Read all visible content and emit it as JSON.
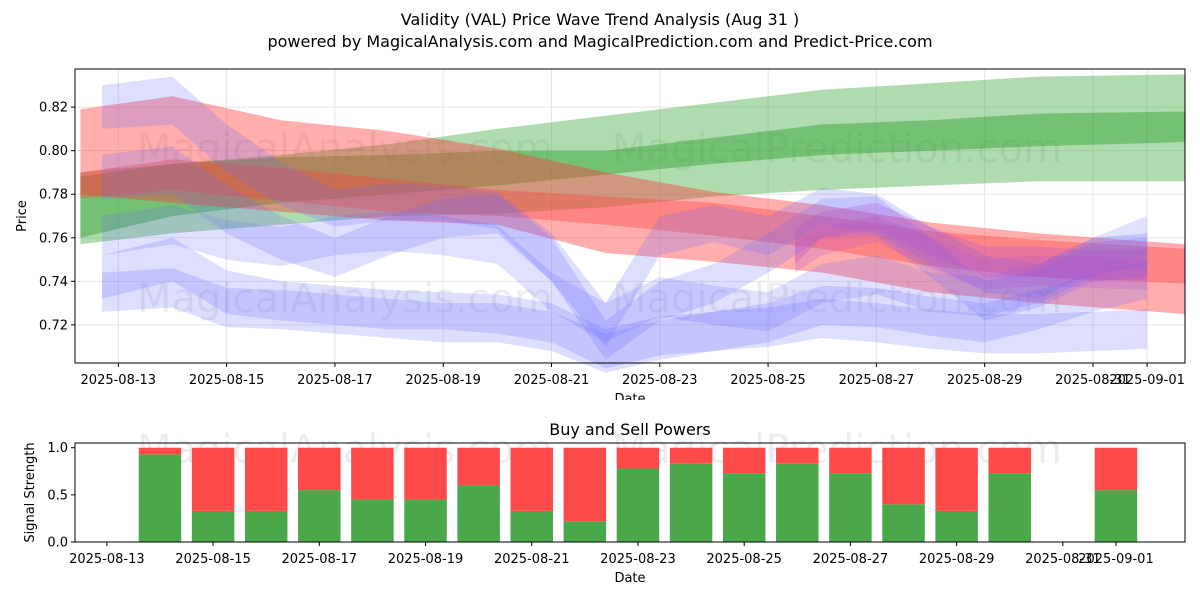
{
  "title_line1": "Validity (VAL) Price Wave Trend Analysis (Aug 31 )",
  "title_line2": "powered by MagicalAnalysis.com and MagicalPrediction.com and Predict-Price.com",
  "watermarks": [
    "MagicalAnalysis.com",
    "MagicalPrediction.com"
  ],
  "colors": {
    "green": "#2ca02c",
    "red": "#ff3b3b",
    "blue": "#6b6bff",
    "purple": "#b04fd0",
    "bar_green": "#4aa84a",
    "bar_red": "#ff4a4a"
  },
  "chart_data": [
    {
      "type": "area",
      "title": "Validity (VAL) Price Wave Trend Analysis (Aug 31 )",
      "xlabel": "Date",
      "ylabel": "Price",
      "ylim": [
        0.7025,
        0.8375
      ],
      "xlim": [
        -0.8,
        19.7
      ],
      "x_origin": "2025-08-13",
      "grid": true,
      "yticks": [
        0.72,
        0.74,
        0.76,
        0.78,
        0.8,
        0.82
      ],
      "yticklabels": [
        "0.72",
        "0.74",
        "0.76",
        "0.78",
        "0.80",
        "0.82"
      ],
      "xticks": [
        0,
        2,
        4,
        6,
        8,
        10,
        12,
        14,
        16,
        18,
        19
      ],
      "xticklabels": [
        "2025-08-13",
        "2025-08-15",
        "2025-08-17",
        "2025-08-19",
        "2025-08-21",
        "2025-08-23",
        "2025-08-25",
        "2025-08-27",
        "2025-08-29",
        "2025-08-31",
        "2025-09-01"
      ],
      "series": [
        {
          "name": "green-wide",
          "color": "green",
          "opacity": 0.38,
          "x": [
            -0.7,
            1,
            3,
            5,
            7,
            9,
            11,
            13,
            15,
            17,
            19.7
          ],
          "upper": [
            0.79,
            0.794,
            0.798,
            0.803,
            0.81,
            0.816,
            0.822,
            0.828,
            0.831,
            0.834,
            0.835
          ],
          "lower": [
            0.757,
            0.762,
            0.766,
            0.77,
            0.771,
            0.774,
            0.779,
            0.782,
            0.784,
            0.786,
            0.786
          ]
        },
        {
          "name": "green-narrow",
          "color": "green",
          "opacity": 0.45,
          "x": [
            -0.7,
            1,
            3,
            5,
            7,
            9,
            11,
            13,
            15,
            17,
            19.7
          ],
          "upper": [
            0.788,
            0.794,
            0.797,
            0.798,
            0.8,
            0.8,
            0.806,
            0.812,
            0.814,
            0.817,
            0.818
          ],
          "lower": [
            0.76,
            0.77,
            0.776,
            0.78,
            0.784,
            0.789,
            0.794,
            0.798,
            0.8,
            0.802,
            0.804
          ]
        },
        {
          "name": "red-wide",
          "color": "red",
          "opacity": 0.42,
          "x": [
            -0.7,
            1,
            3,
            5,
            7,
            9,
            11,
            13,
            15,
            17,
            19.7
          ],
          "upper": [
            0.819,
            0.825,
            0.814,
            0.809,
            0.801,
            0.79,
            0.781,
            0.775,
            0.767,
            0.762,
            0.757
          ],
          "lower": [
            0.78,
            0.776,
            0.772,
            0.768,
            0.766,
            0.753,
            0.749,
            0.744,
            0.735,
            0.73,
            0.725
          ]
        },
        {
          "name": "red-narrow",
          "color": "red",
          "opacity": 0.35,
          "x": [
            -0.7,
            1,
            3,
            5,
            7,
            9,
            11,
            13,
            15,
            17,
            19.7
          ],
          "upper": [
            0.79,
            0.796,
            0.792,
            0.787,
            0.782,
            0.779,
            0.776,
            0.77,
            0.763,
            0.759,
            0.755
          ],
          "lower": [
            0.778,
            0.782,
            0.777,
            0.772,
            0.77,
            0.766,
            0.761,
            0.755,
            0.747,
            0.742,
            0.739
          ]
        },
        {
          "name": "blue-1",
          "color": "blue",
          "opacity": 0.22,
          "x": [
            -0.3,
            1,
            2,
            3,
            4,
            5,
            6,
            7,
            8,
            9,
            10,
            11,
            12,
            13,
            14,
            15,
            16,
            17,
            18,
            19
          ],
          "upper": [
            0.83,
            0.834,
            0.812,
            0.795,
            0.782,
            0.785,
            0.784,
            0.781,
            0.762,
            0.73,
            0.77,
            0.775,
            0.77,
            0.783,
            0.78,
            0.765,
            0.752,
            0.748,
            0.76,
            0.762
          ],
          "lower": [
            0.81,
            0.812,
            0.79,
            0.775,
            0.765,
            0.768,
            0.768,
            0.764,
            0.74,
            0.71,
            0.752,
            0.758,
            0.752,
            0.766,
            0.762,
            0.748,
            0.735,
            0.732,
            0.744,
            0.746
          ]
        },
        {
          "name": "blue-2",
          "color": "blue",
          "opacity": 0.22,
          "x": [
            -0.3,
            1,
            2,
            3,
            4,
            5,
            6,
            7,
            8,
            9,
            10,
            11,
            12,
            13,
            14,
            15,
            16,
            17,
            18,
            19
          ],
          "upper": [
            0.798,
            0.802,
            0.784,
            0.77,
            0.76,
            0.77,
            0.778,
            0.78,
            0.76,
            0.722,
            0.74,
            0.748,
            0.762,
            0.778,
            0.779,
            0.76,
            0.74,
            0.745,
            0.758,
            0.76
          ],
          "lower": [
            0.778,
            0.78,
            0.762,
            0.75,
            0.742,
            0.752,
            0.76,
            0.762,
            0.74,
            0.704,
            0.722,
            0.73,
            0.744,
            0.76,
            0.761,
            0.742,
            0.722,
            0.728,
            0.74,
            0.742
          ]
        },
        {
          "name": "blue-3",
          "color": "blue",
          "opacity": 0.22,
          "x": [
            -0.3,
            1,
            2,
            3,
            4,
            5,
            6,
            7,
            8,
            9,
            10,
            11,
            12,
            13,
            14,
            15,
            16,
            17,
            18,
            19
          ],
          "upper": [
            0.752,
            0.76,
            0.745,
            0.74,
            0.738,
            0.736,
            0.735,
            0.734,
            0.73,
            0.718,
            0.724,
            0.726,
            0.728,
            0.732,
            0.73,
            0.727,
            0.725,
            0.725,
            0.726,
            0.727
          ],
          "lower": [
            0.732,
            0.74,
            0.725,
            0.722,
            0.72,
            0.718,
            0.718,
            0.716,
            0.712,
            0.7,
            0.706,
            0.708,
            0.71,
            0.714,
            0.712,
            0.709,
            0.707,
            0.707,
            0.708,
            0.709
          ]
        },
        {
          "name": "blue-4",
          "color": "blue",
          "opacity": 0.22,
          "x": [
            -0.3,
            1,
            2,
            3,
            4,
            5,
            6,
            7,
            8,
            9,
            10,
            11,
            12,
            13,
            14,
            15,
            16,
            17,
            18,
            19
          ],
          "upper": [
            0.744,
            0.746,
            0.737,
            0.736,
            0.734,
            0.732,
            0.73,
            0.73,
            0.726,
            0.716,
            0.722,
            0.726,
            0.73,
            0.738,
            0.737,
            0.733,
            0.73,
            0.736,
            0.744,
            0.75
          ],
          "lower": [
            0.726,
            0.728,
            0.719,
            0.718,
            0.716,
            0.714,
            0.712,
            0.712,
            0.708,
            0.698,
            0.704,
            0.708,
            0.712,
            0.72,
            0.719,
            0.715,
            0.712,
            0.718,
            0.726,
            0.732
          ]
        },
        {
          "name": "blue-5",
          "color": "blue",
          "opacity": 0.2,
          "x": [
            -0.3,
            1,
            2,
            3,
            4,
            5,
            6,
            7,
            8,
            9,
            10,
            11,
            12,
            13,
            14,
            15,
            16,
            17,
            18,
            19
          ],
          "upper": [
            0.77,
            0.775,
            0.768,
            0.765,
            0.77,
            0.772,
            0.77,
            0.766,
            0.744,
            0.73,
            0.742,
            0.738,
            0.735,
            0.748,
            0.752,
            0.744,
            0.742,
            0.748,
            0.76,
            0.77
          ],
          "lower": [
            0.752,
            0.757,
            0.75,
            0.747,
            0.752,
            0.754,
            0.752,
            0.748,
            0.726,
            0.712,
            0.724,
            0.72,
            0.717,
            0.73,
            0.734,
            0.726,
            0.724,
            0.73,
            0.742,
            0.752
          ]
        },
        {
          "name": "purple-1",
          "color": "purple",
          "opacity": 0.28,
          "x": [
            12.5,
            13,
            14,
            15,
            16,
            17,
            18,
            19
          ],
          "upper": [
            0.764,
            0.772,
            0.776,
            0.765,
            0.756,
            0.756,
            0.754,
            0.755
          ],
          "lower": [
            0.748,
            0.76,
            0.764,
            0.752,
            0.742,
            0.742,
            0.74,
            0.741
          ]
        },
        {
          "name": "purple-2",
          "color": "purple",
          "opacity": 0.22,
          "x": [
            12.5,
            13,
            14,
            15,
            16,
            17,
            18,
            19
          ],
          "upper": [
            0.758,
            0.765,
            0.77,
            0.76,
            0.75,
            0.752,
            0.751,
            0.75
          ],
          "lower": [
            0.744,
            0.752,
            0.758,
            0.746,
            0.736,
            0.738,
            0.737,
            0.736
          ]
        }
      ]
    },
    {
      "type": "bar",
      "stacked": true,
      "title": "Buy and Sell Powers",
      "xlabel": "Date",
      "ylabel": "Signal Strength",
      "ylim": [
        0,
        1.05
      ],
      "xlim": [
        -0.6,
        20.3
      ],
      "x_origin": "2025-08-13",
      "yticks": [
        0.0,
        0.5,
        1.0
      ],
      "yticklabels": [
        "0.0",
        "0.5",
        "1.0"
      ],
      "xticks": [
        0,
        2,
        4,
        6,
        8,
        10,
        12,
        14,
        16,
        18,
        19
      ],
      "xticklabels": [
        "2025-08-13",
        "2025-08-15",
        "2025-08-17",
        "2025-08-19",
        "2025-08-21",
        "2025-08-23",
        "2025-08-25",
        "2025-08-27",
        "2025-08-29",
        "2025-08-31",
        "2025-09-01"
      ],
      "x": [
        1,
        2,
        3,
        4,
        5,
        6,
        7,
        8,
        9,
        10,
        11,
        12,
        13,
        14,
        15,
        16,
        17,
        19
      ],
      "series": [
        {
          "name": "Buy",
          "color": "bar_green",
          "values": [
            0.93,
            0.33,
            0.33,
            0.55,
            0.45,
            0.45,
            0.6,
            0.33,
            0.22,
            0.78,
            0.83,
            0.73,
            0.83,
            0.73,
            0.4,
            0.33,
            0.73,
            0.55
          ]
        },
        {
          "name": "Sell",
          "color": "bar_red",
          "values": [
            0.07,
            0.67,
            0.67,
            0.45,
            0.55,
            0.55,
            0.4,
            0.67,
            0.78,
            0.22,
            0.17,
            0.27,
            0.17,
            0.27,
            0.6,
            0.67,
            0.27,
            0.45
          ]
        }
      ]
    }
  ]
}
